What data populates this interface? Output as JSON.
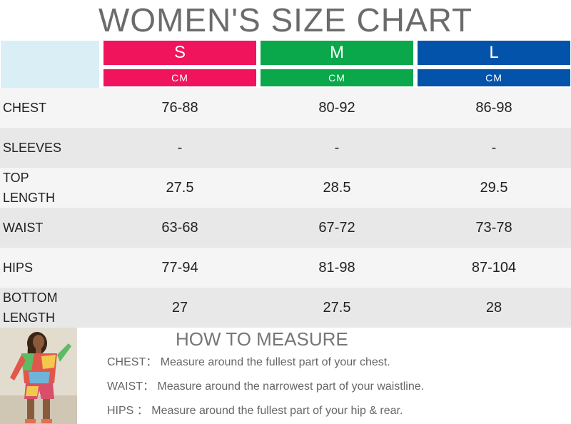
{
  "title": "WOMEN'S SIZE CHART",
  "sizes": [
    {
      "label": "S",
      "unit": "CM",
      "color": "#f0145d"
    },
    {
      "label": "M",
      "unit": "CM",
      "color": "#0aa84a"
    },
    {
      "label": "L",
      "unit": "CM",
      "color": "#0453ab"
    }
  ],
  "rows": [
    {
      "label": "CHEST",
      "values": [
        "76-88",
        "80-92",
        "86-98"
      ]
    },
    {
      "label": "SLEEVES",
      "values": [
        "-",
        "-",
        "-"
      ]
    },
    {
      "label": "TOP LENGTH",
      "values": [
        "27.5",
        "28.5",
        "29.5"
      ]
    },
    {
      "label": "WAIST",
      "values": [
        "63-68",
        "67-72",
        "73-78"
      ]
    },
    {
      "label": "HIPS",
      "values": [
        "77-94",
        "81-98",
        "87-104"
      ]
    },
    {
      "label": "BOTTOM LENGTH",
      "values": [
        "27",
        "27.5",
        "28"
      ]
    }
  ],
  "how_to_measure": {
    "title": "HOW TO MEASURE",
    "items": [
      {
        "key": "CHEST：",
        "text": "Measure around the fullest part of your chest."
      },
      {
        "key": "WAIST：",
        "text": "Measure around the narrowest part of your waistline."
      },
      {
        "key": "HIPS ：",
        "text": "Measure around the fullest part of your hip & rear."
      }
    ]
  }
}
